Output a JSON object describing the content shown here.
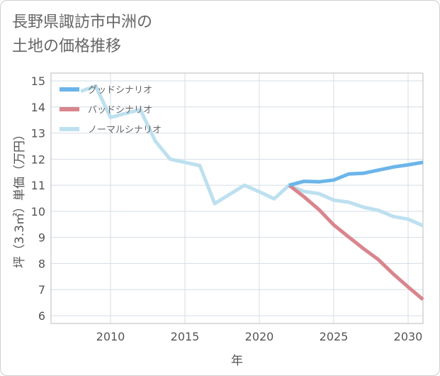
{
  "title": {
    "line1": "長野県諏訪市中洲の",
    "line2": "土地の価格推移"
  },
  "colors": {
    "good": "#6bb5ea",
    "bad": "#d9858d",
    "normal": "#bde0ef",
    "grid": "#d4dde6",
    "frame": "#bbbbbb"
  },
  "chart_data": {
    "type": "line",
    "xlabel": "年",
    "ylabel": "坪（3.3㎡）単価（万円）",
    "xlim": [
      2006,
      2031
    ],
    "ylim": [
      5.7,
      15.3
    ],
    "xticks": [
      2010,
      2015,
      2020,
      2025,
      2030
    ],
    "yticks": [
      6,
      7,
      8,
      9,
      10,
      11,
      12,
      13,
      14,
      15
    ],
    "grid": true,
    "legend_position": "top-left",
    "series": [
      {
        "name": "グッドシナリオ",
        "color": "#6bb5ea",
        "x": [
          2022,
          2023,
          2024,
          2025,
          2026,
          2027,
          2028,
          2029,
          2030,
          2031
        ],
        "y": [
          11.0,
          11.15,
          11.13,
          11.2,
          11.43,
          11.46,
          11.58,
          11.7,
          11.78,
          11.88
        ]
      },
      {
        "name": "バッドシナリオ",
        "color": "#d9858d",
        "x": [
          2022,
          2023,
          2024,
          2025,
          2026,
          2027,
          2028,
          2029,
          2030,
          2031
        ],
        "y": [
          11.0,
          10.56,
          10.07,
          9.48,
          9.02,
          8.57,
          8.15,
          7.6,
          7.1,
          6.62
        ]
      },
      {
        "name": "ノーマルシナリオ",
        "color": "#bde0ef",
        "x": [
          2008,
          2009,
          2010,
          2011,
          2012,
          2013,
          2014,
          2015,
          2016,
          2017,
          2018,
          2019,
          2020,
          2021,
          2022,
          2023,
          2024,
          2025,
          2026,
          2027,
          2028,
          2029,
          2030,
          2031
        ],
        "y": [
          14.6,
          14.8,
          13.6,
          13.75,
          13.9,
          12.7,
          12.0,
          11.88,
          11.75,
          10.3,
          10.65,
          11.0,
          10.75,
          10.48,
          11.0,
          10.76,
          10.68,
          10.43,
          10.35,
          10.16,
          10.04,
          9.8,
          9.7,
          9.45
        ]
      }
    ]
  }
}
